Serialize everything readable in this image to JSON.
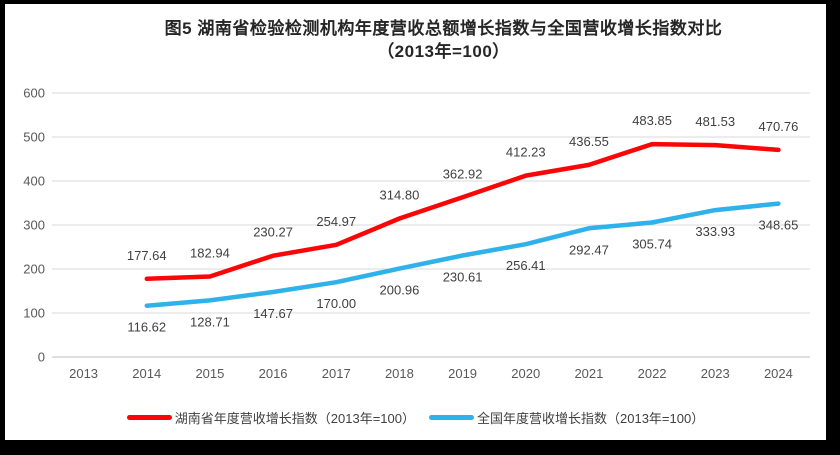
{
  "title": {
    "line1": "图5 湖南省检验检测机构年度营收总额增长指数与全国营收增长指数对比",
    "line2": "（2013年=100）"
  },
  "chart_data": {
    "type": "line",
    "categories": [
      "2013",
      "2014",
      "2015",
      "2016",
      "2017",
      "2018",
      "2019",
      "2020",
      "2021",
      "2022",
      "2023",
      "2024"
    ],
    "series": [
      {
        "name": "湖南省年度营收增长指数（2013年=100）",
        "color": "#FB0606",
        "label_position": "above",
        "values": [
          null,
          177.64,
          182.94,
          230.27,
          254.97,
          314.8,
          362.92,
          412.23,
          436.55,
          483.85,
          481.53,
          470.76
        ],
        "labels": [
          "",
          "177.64",
          "182.94",
          "230.27",
          "254.97",
          "314.80",
          "362.92",
          "412.23",
          "436.55",
          "483.85",
          "481.53",
          "470.76"
        ]
      },
      {
        "name": "全国年度营收增长指数（2013年=100）",
        "color": "#2FB1EA",
        "label_position": "below",
        "values": [
          null,
          116.62,
          128.71,
          147.67,
          170.0,
          200.96,
          230.61,
          256.41,
          292.47,
          305.74,
          333.93,
          348.65
        ],
        "labels": [
          "",
          "116.62",
          "128.71",
          "147.67",
          "170.00",
          "200.96",
          "230.61",
          "256.41",
          "292.47",
          "305.74",
          "333.93",
          "348.65"
        ]
      }
    ],
    "xlabel": "",
    "ylabel": "",
    "ylim": [
      0,
      600
    ],
    "yticks": [
      0,
      100,
      200,
      300,
      400,
      500,
      600
    ],
    "grid": true,
    "legend_position": "bottom"
  },
  "colors": {
    "grid": "#D9D9D9",
    "axis": "#BFBFBF",
    "tick_text": "#595959",
    "label_text": "#404040",
    "title_text": "#262626",
    "frame": "#000000",
    "background": "#FFFFFF"
  }
}
